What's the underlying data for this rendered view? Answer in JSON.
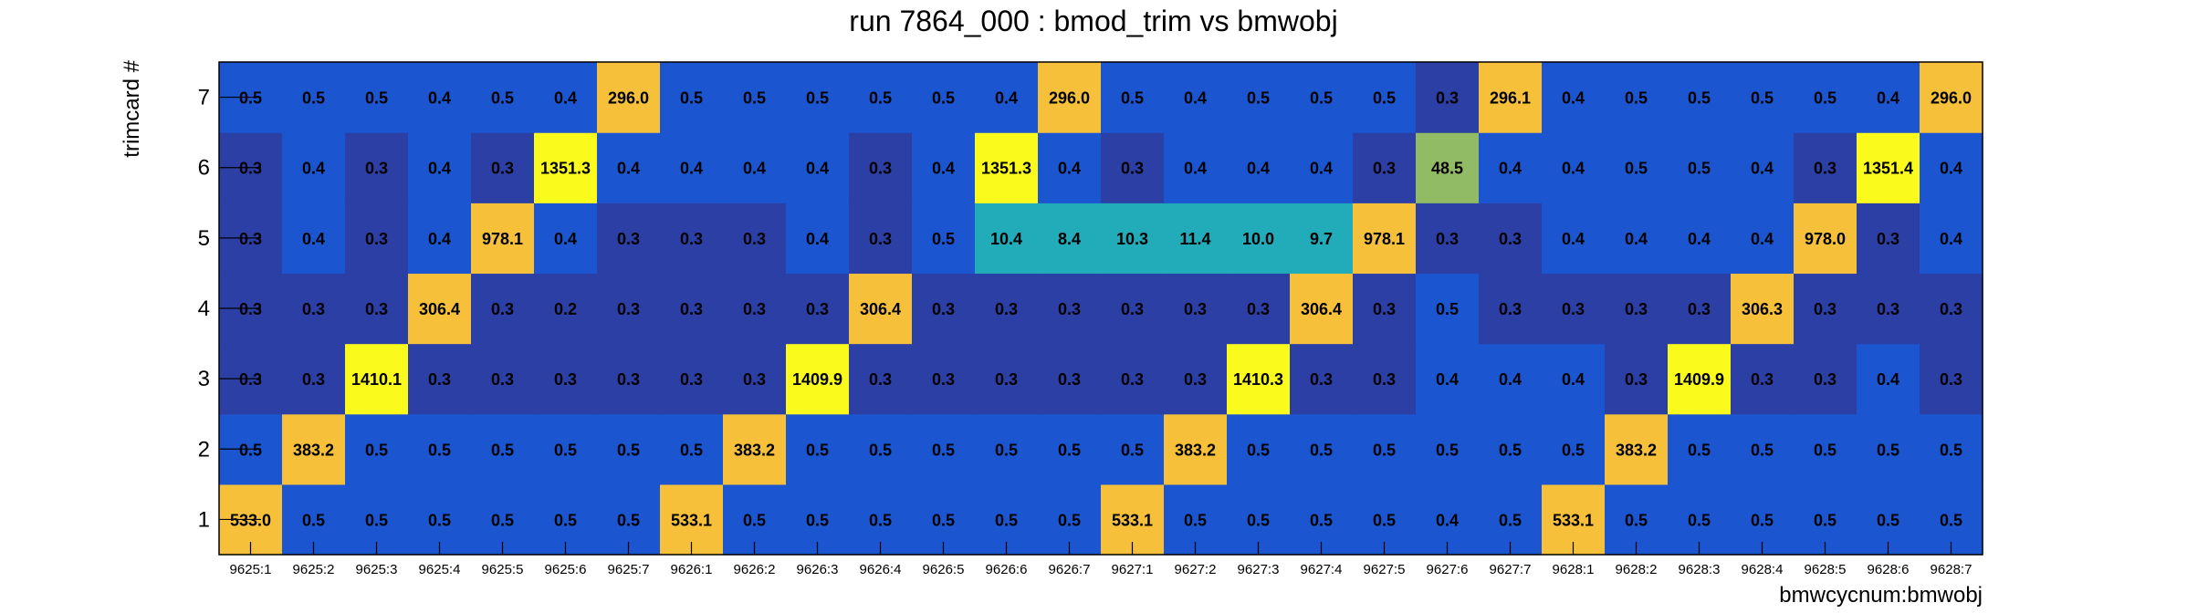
{
  "chart_data": {
    "type": "heatmap",
    "title": "run 7864_000 : bmod_trim vs bmwobj",
    "xlabel": "bmwcycnum:bmwobj",
    "ylabel": "trimcard #",
    "x_categories": [
      "9625:1",
      "9625:2",
      "9625:3",
      "9625:4",
      "9625:5",
      "9625:6",
      "9625:7",
      "9626:1",
      "9626:2",
      "9626:3",
      "9626:4",
      "9626:5",
      "9626:6",
      "9626:7",
      "9627:1",
      "9627:2",
      "9627:3",
      "9627:4",
      "9627:5",
      "9627:6",
      "9627:7",
      "9628:1",
      "9628:2",
      "9628:3",
      "9628:4",
      "9628:5",
      "9628:6",
      "9628:7"
    ],
    "y_categories": [
      "1",
      "2",
      "3",
      "4",
      "5",
      "6",
      "7"
    ],
    "values": [
      [
        "533.0",
        "0.5",
        "0.5",
        "0.5",
        "0.5",
        "0.5",
        "0.5",
        "533.1",
        "0.5",
        "0.5",
        "0.5",
        "0.5",
        "0.5",
        "0.5",
        "533.1",
        "0.5",
        "0.5",
        "0.5",
        "0.5",
        "0.4",
        "0.5",
        "533.1",
        "0.5",
        "0.5",
        "0.5",
        "0.5",
        "0.5",
        "0.5"
      ],
      [
        "0.5",
        "383.2",
        "0.5",
        "0.5",
        "0.5",
        "0.5",
        "0.5",
        "0.5",
        "383.2",
        "0.5",
        "0.5",
        "0.5",
        "0.5",
        "0.5",
        "0.5",
        "383.2",
        "0.5",
        "0.5",
        "0.5",
        "0.5",
        "0.5",
        "0.5",
        "383.2",
        "0.5",
        "0.5",
        "0.5",
        "0.5",
        "0.5"
      ],
      [
        "0.3",
        "0.3",
        "1410.1",
        "0.3",
        "0.3",
        "0.3",
        "0.3",
        "0.3",
        "0.3",
        "1409.9",
        "0.3",
        "0.3",
        "0.3",
        "0.3",
        "0.3",
        "0.3",
        "1410.3",
        "0.3",
        "0.3",
        "0.4",
        "0.4",
        "0.4",
        "0.3",
        "1409.9",
        "0.3",
        "0.3",
        "0.4",
        "0.3"
      ],
      [
        "0.3",
        "0.3",
        "0.3",
        "306.4",
        "0.3",
        "0.2",
        "0.3",
        "0.3",
        "0.3",
        "0.3",
        "306.4",
        "0.3",
        "0.3",
        "0.3",
        "0.3",
        "0.3",
        "0.3",
        "306.4",
        "0.3",
        "0.5",
        "0.3",
        "0.3",
        "0.3",
        "0.3",
        "306.3",
        "0.3",
        "0.3",
        "0.3"
      ],
      [
        "0.3",
        "0.4",
        "0.3",
        "0.4",
        "978.1",
        "0.4",
        "0.3",
        "0.3",
        "0.3",
        "0.4",
        "0.3",
        "0.5",
        "10.4",
        "8.4",
        "10.3",
        "11.4",
        "10.0",
        "9.7",
        "978.1",
        "0.3",
        "0.3",
        "0.4",
        "0.4",
        "0.4",
        "0.4",
        "978.0",
        "0.3",
        "0.4"
      ],
      [
        "0.3",
        "0.4",
        "0.3",
        "0.4",
        "0.3",
        "1351.3",
        "0.4",
        "0.4",
        "0.4",
        "0.4",
        "0.3",
        "0.4",
        "1351.3",
        "0.4",
        "0.3",
        "0.4",
        "0.4",
        "0.4",
        "0.3",
        "48.5",
        "0.4",
        "0.4",
        "0.5",
        "0.5",
        "0.4",
        "0.3",
        "1351.4",
        "0.4"
      ],
      [
        "0.5",
        "0.5",
        "0.5",
        "0.4",
        "0.5",
        "0.4",
        "296.0",
        "0.5",
        "0.5",
        "0.5",
        "0.5",
        "0.5",
        "0.4",
        "296.0",
        "0.5",
        "0.4",
        "0.5",
        "0.5",
        "0.5",
        "0.3",
        "296.1",
        "0.4",
        "0.5",
        "0.5",
        "0.5",
        "0.5",
        "0.4",
        "296.0"
      ]
    ],
    "colors": {
      "low_dark": "#2b3fa5",
      "low_light": "#1b55d0",
      "teal": "#22abb8",
      "green": "#92bb66",
      "gold": "#f6c03a",
      "yellow": "#fafa1c"
    },
    "grid": false,
    "legend": "none"
  }
}
